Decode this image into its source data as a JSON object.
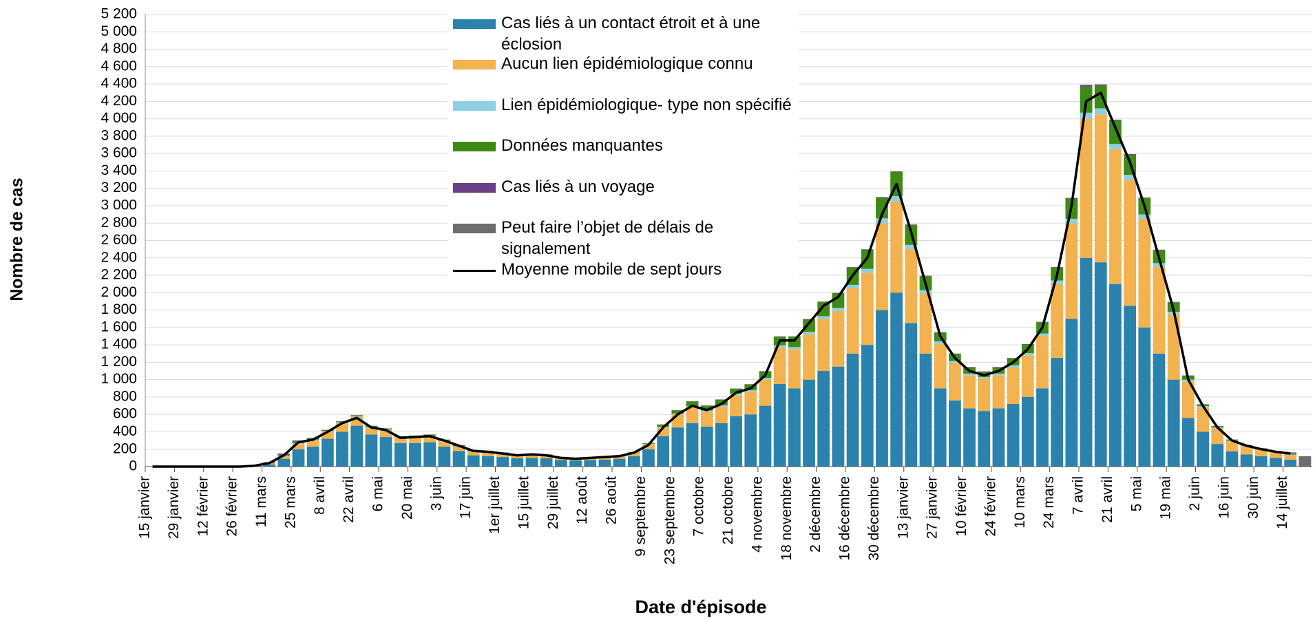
{
  "chart_data": {
    "type": "stacked_bar",
    "x_label": "Date d'épisode",
    "y_label": "Nombre de cas",
    "categories": [
      "15 janvier",
      null,
      "29 janvier",
      null,
      "12 février",
      null,
      "26 février",
      null,
      "11 mars",
      null,
      "25 mars",
      null,
      "8 avril",
      null,
      "22 avril",
      null,
      "6 mai",
      null,
      "20 mai",
      null,
      "3 juin",
      null,
      "17 juin",
      null,
      "1er juillet",
      null,
      "15 juillet",
      null,
      "29 juillet",
      null,
      "12 août",
      null,
      "26 août",
      null,
      "9 septembre",
      null,
      "23 septembre",
      null,
      "7 octobre",
      null,
      "21 octobre",
      null,
      "4 novembre",
      null,
      "18 novembre",
      null,
      "2 décembre",
      null,
      "16 décembre",
      null,
      "30 décembre",
      null,
      "13 janvier",
      null,
      "27 janvier",
      null,
      "10 février",
      null,
      "24 février",
      null,
      "10 mars",
      null,
      "24 mars",
      null,
      "7 avril",
      null,
      "21 avril",
      null,
      "5 mai",
      null,
      "19 mai",
      null,
      "2 juin",
      null,
      "16 juin",
      null,
      "30 juin",
      null,
      "14 juillet",
      null
    ],
    "series": [
      {
        "name": "Cas liés à un contact étroit et à une éclosion",
        "color": "#2a82ad",
        "values": [
          0,
          0,
          0,
          0,
          0,
          0,
          2,
          8,
          25,
          90,
          200,
          230,
          320,
          400,
          470,
          370,
          340,
          270,
          270,
          280,
          230,
          180,
          130,
          120,
          110,
          95,
          100,
          95,
          75,
          70,
          75,
          80,
          90,
          120,
          200,
          350,
          450,
          500,
          460,
          500,
          580,
          600,
          700,
          950,
          900,
          1000,
          1100,
          1150,
          1300,
          1400,
          1800,
          2000,
          1650,
          1300,
          900,
          760,
          670,
          640,
          670,
          720,
          800,
          900,
          1250,
          1700,
          2400,
          2350,
          2100,
          1850,
          1600,
          1300,
          1000,
          560,
          400,
          260,
          175,
          140,
          120,
          100,
          80,
          0
        ]
      },
      {
        "name": "Aucun lien épidémiologique connu",
        "color": "#f2b24f",
        "values": [
          0,
          0,
          0,
          0,
          0,
          0,
          1,
          3,
          10,
          30,
          60,
          70,
          80,
          100,
          100,
          80,
          80,
          65,
          70,
          70,
          60,
          50,
          45,
          45,
          40,
          35,
          38,
          35,
          27,
          24,
          27,
          30,
          32,
          40,
          55,
          100,
          150,
          180,
          170,
          190,
          240,
          260,
          300,
          420,
          450,
          520,
          600,
          640,
          750,
          830,
          1000,
          1050,
          850,
          690,
          510,
          430,
          380,
          370,
          380,
          420,
          480,
          600,
          850,
          1100,
          1600,
          1700,
          1550,
          1450,
          1250,
          1000,
          750,
          420,
          280,
          180,
          115,
          95,
          80,
          70,
          55,
          0
        ]
      },
      {
        "name": "Lien épidémiologique- type non spécifié",
        "color": "#8dd0e2",
        "values": [
          0,
          0,
          0,
          0,
          0,
          0,
          0,
          0,
          2,
          5,
          10,
          10,
          10,
          10,
          10,
          8,
          8,
          6,
          6,
          6,
          5,
          4,
          4,
          3,
          3,
          3,
          3,
          3,
          3,
          2,
          2,
          3,
          3,
          3,
          5,
          8,
          10,
          15,
          15,
          15,
          20,
          20,
          20,
          25,
          25,
          30,
          30,
          35,
          40,
          45,
          55,
          60,
          50,
          40,
          30,
          25,
          20,
          20,
          20,
          25,
          25,
          30,
          40,
          50,
          70,
          70,
          60,
          55,
          50,
          40,
          30,
          20,
          15,
          10,
          8,
          6,
          5,
          4,
          3,
          0
        ]
      },
      {
        "name": "Données manquantes",
        "color": "#3f8a14",
        "values": [
          0,
          0,
          0,
          0,
          0,
          0,
          0,
          1,
          3,
          10,
          20,
          15,
          10,
          10,
          10,
          10,
          10,
          8,
          10,
          12,
          15,
          14,
          10,
          11,
          9,
          8,
          8,
          6,
          6,
          3,
          5,
          7,
          5,
          5,
          8,
          25,
          35,
          55,
          55,
          65,
          55,
          65,
          75,
          100,
          120,
          145,
          165,
          170,
          200,
          220,
          240,
          280,
          230,
          160,
          100,
          80,
          70,
          60,
          70,
          80,
          100,
          130,
          150,
          230,
          300,
          260,
          270,
          230,
          190,
          150,
          110,
          45,
          20,
          15,
          12,
          8,
          5,
          4,
          4,
          0
        ]
      },
      {
        "name": "Cas liés à un voyage",
        "color": "#6b3f86",
        "values": [
          0,
          0,
          0,
          0,
          0,
          0,
          2,
          3,
          10,
          15,
          10,
          5,
          3,
          2,
          2,
          2,
          2,
          1,
          1,
          1,
          1,
          1,
          1,
          1,
          1,
          1,
          1,
          1,
          1,
          1,
          1,
          1,
          1,
          1,
          2,
          2,
          3,
          3,
          3,
          3,
          3,
          3,
          3,
          3,
          3,
          3,
          3,
          3,
          5,
          5,
          5,
          5,
          5,
          5,
          5,
          5,
          5,
          5,
          5,
          5,
          5,
          5,
          5,
          10,
          20,
          15,
          10,
          8,
          5,
          5,
          4,
          3,
          2,
          2,
          2,
          1,
          1,
          1,
          1,
          0
        ]
      },
      {
        "name": "Peut faire l’objet de délais de signalement",
        "color": "#6d6d6d",
        "values": [
          0,
          0,
          0,
          0,
          0,
          0,
          0,
          0,
          0,
          0,
          0,
          0,
          0,
          0,
          0,
          0,
          0,
          0,
          0,
          0,
          0,
          0,
          0,
          0,
          0,
          0,
          0,
          0,
          0,
          0,
          0,
          0,
          0,
          0,
          0,
          0,
          0,
          0,
          0,
          0,
          0,
          0,
          0,
          0,
          0,
          0,
          0,
          0,
          0,
          0,
          0,
          0,
          0,
          0,
          0,
          0,
          0,
          0,
          0,
          0,
          0,
          0,
          0,
          0,
          0,
          0,
          0,
          0,
          0,
          0,
          0,
          0,
          0,
          0,
          0,
          0,
          0,
          0,
          20,
          120
        ]
      }
    ],
    "line": {
      "name": "Moyenne mobile de sept jours",
      "color": "#000000",
      "values": [
        0,
        0,
        0,
        0,
        0,
        0,
        0,
        10,
        40,
        130,
        280,
        310,
        400,
        500,
        560,
        450,
        420,
        330,
        340,
        350,
        300,
        240,
        180,
        170,
        150,
        130,
        140,
        130,
        100,
        90,
        100,
        110,
        120,
        160,
        250,
        450,
        600,
        700,
        650,
        720,
        850,
        900,
        1050,
        1450,
        1450,
        1650,
        1850,
        1950,
        2200,
        2400,
        2900,
        3250,
        2700,
        2100,
        1500,
        1250,
        1100,
        1050,
        1100,
        1200,
        1350,
        1600,
        2200,
        3000,
        4200,
        4300,
        3900,
        3500,
        3000,
        2400,
        1800,
        1000,
        700,
        450,
        300,
        240,
        200,
        170,
        150,
        null
      ]
    },
    "ylim": [
      0,
      5200
    ],
    "yticks": [
      0,
      200,
      400,
      600,
      800,
      {
        "value": 1000,
        "label": "1 000"
      },
      {
        "value": 1200,
        "label": "1 200"
      },
      {
        "value": 1400,
        "label": "1 400"
      },
      {
        "value": 1600,
        "label": "1 600"
      },
      {
        "value": 1800,
        "label": "1 800"
      },
      {
        "value": 2000,
        "label": "2 000"
      },
      {
        "value": 2200,
        "label": "2 200"
      },
      {
        "value": 2400,
        "label": "2 400"
      },
      {
        "value": 2600,
        "label": "2 600"
      },
      {
        "value": 2800,
        "label": "2 800"
      },
      {
        "value": 3000,
        "label": "3 000"
      },
      {
        "value": 3200,
        "label": "3 200"
      },
      {
        "value": 3400,
        "label": "3 400"
      },
      {
        "value": 3600,
        "label": "3 600"
      },
      {
        "value": 3800,
        "label": "3 800"
      },
      {
        "value": 4000,
        "label": "4 000"
      },
      {
        "value": 4200,
        "label": "4 200"
      },
      {
        "value": 4400,
        "label": "4 400"
      },
      {
        "value": 4600,
        "label": "4 600"
      },
      {
        "value": 4800,
        "label": "4 800"
      },
      {
        "value": 5000,
        "label": "5 000"
      },
      {
        "value": 5200,
        "label": "5 200"
      }
    ],
    "grid": true
  }
}
